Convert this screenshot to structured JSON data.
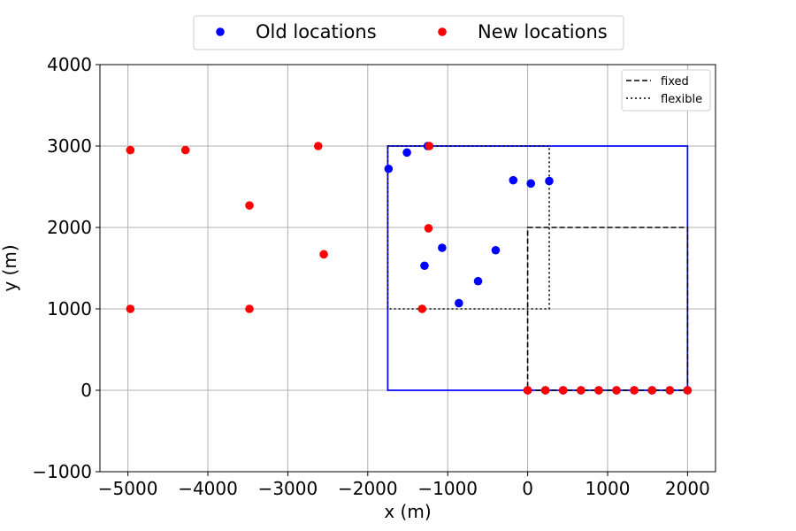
{
  "chart_data": {
    "type": "scatter",
    "title": "",
    "xlabel": "x (m)",
    "ylabel": "y (m)",
    "xlim": [
      -5350,
      2350
    ],
    "ylim": [
      -1000,
      4000
    ],
    "xticks": [
      -5000,
      -4000,
      -3000,
      -2000,
      -1000,
      0,
      1000,
      2000
    ],
    "xtick_labels": [
      "−5000",
      "−4000",
      "−3000",
      "−2000",
      "−1000",
      "0",
      "1000",
      "2000"
    ],
    "yticks": [
      -1000,
      0,
      1000,
      2000,
      3000,
      4000
    ],
    "ytick_labels": [
      "−1000",
      "0",
      "1000",
      "2000",
      "3000",
      "4000"
    ],
    "grid": true,
    "point_series": [
      {
        "name": "Old locations",
        "color": "#0000ff",
        "points": [
          {
            "x": -1740,
            "y": 2720
          },
          {
            "x": -1510,
            "y": 2920
          },
          {
            "x": -1250,
            "y": 3000
          },
          {
            "x": -180,
            "y": 2580
          },
          {
            "x": 40,
            "y": 2540
          },
          {
            "x": 270,
            "y": 2570
          },
          {
            "x": -1070,
            "y": 1750
          },
          {
            "x": -400,
            "y": 1720
          },
          {
            "x": -1290,
            "y": 1530
          },
          {
            "x": -620,
            "y": 1340
          },
          {
            "x": -860,
            "y": 1070
          },
          {
            "x": 0,
            "y": 0
          },
          {
            "x": 222,
            "y": 0
          },
          {
            "x": 444,
            "y": 0
          },
          {
            "x": 667,
            "y": 0
          },
          {
            "x": 889,
            "y": 0
          },
          {
            "x": 1111,
            "y": 0
          },
          {
            "x": 1333,
            "y": 0
          },
          {
            "x": 1556,
            "y": 0
          },
          {
            "x": 1778,
            "y": 0
          },
          {
            "x": 2000,
            "y": 0
          }
        ]
      },
      {
        "name": "New locations",
        "color": "#ff0000",
        "points": [
          {
            "x": -4970,
            "y": 2950
          },
          {
            "x": -4280,
            "y": 2950
          },
          {
            "x": -2620,
            "y": 3000
          },
          {
            "x": -1230,
            "y": 3000
          },
          {
            "x": -3480,
            "y": 2270
          },
          {
            "x": -1240,
            "y": 1990
          },
          {
            "x": -2550,
            "y": 1670
          },
          {
            "x": -4970,
            "y": 1000
          },
          {
            "x": -3480,
            "y": 1000
          },
          {
            "x": -1320,
            "y": 1000
          },
          {
            "x": 0,
            "y": 0
          },
          {
            "x": 222,
            "y": 0
          },
          {
            "x": 444,
            "y": 0
          },
          {
            "x": 667,
            "y": 0
          },
          {
            "x": 889,
            "y": 0
          },
          {
            "x": 1111,
            "y": 0
          },
          {
            "x": 1333,
            "y": 0
          },
          {
            "x": 1556,
            "y": 0
          },
          {
            "x": 1778,
            "y": 0
          },
          {
            "x": 2000,
            "y": 0
          }
        ]
      }
    ],
    "boundaries": [
      {
        "name": "",
        "style": "solid",
        "color": "#0000ff",
        "x0": -1750,
        "y0": 0,
        "x1": 2000,
        "y1": 3000
      },
      {
        "name": "fixed",
        "style": "dashed",
        "color": "#000000",
        "x0": 0,
        "y0": 0,
        "x1": 2000,
        "y1": 2000
      },
      {
        "name": "flexible",
        "style": "dotted",
        "color": "#000000",
        "x0": -1750,
        "y0": 1000,
        "x1": 270,
        "y1": 3000
      }
    ],
    "legends": {
      "points_placement": "top-center, outside plot",
      "lines_placement": "top-right, inside plot"
    }
  }
}
